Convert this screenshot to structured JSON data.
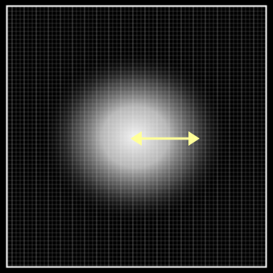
{
  "image": {
    "background_color": "#000000",
    "border_color": "#ffffff",
    "grid_line_color": "#ffffff",
    "glow_color": "#ffffff",
    "arrow_color": "#ffff99"
  },
  "scene": {
    "center_blob": "bright",
    "arrow": "double-headed",
    "arrow_direction": "horizontal"
  }
}
